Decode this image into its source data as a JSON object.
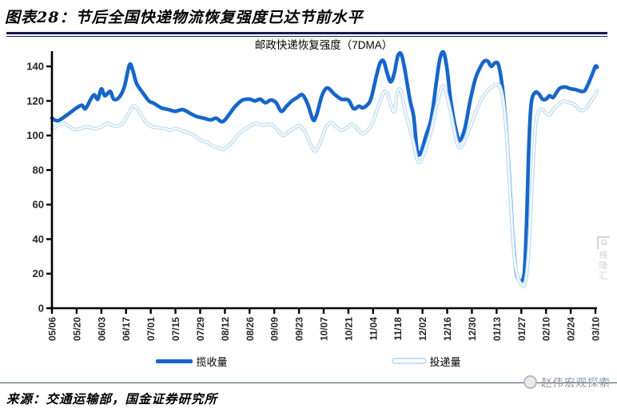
{
  "header": {
    "title": "图表28：节后全国快递物流恢复强度已达节前水平"
  },
  "chart_data": {
    "type": "line",
    "title": "邮政快递恢复强度（7DMA）",
    "xlabel": "",
    "ylabel": "",
    "ylim": [
      0,
      150
    ],
    "yticks": [
      0,
      20,
      40,
      60,
      80,
      100,
      120,
      140
    ],
    "grid": false,
    "legend_position": "bottom",
    "x_axis": {
      "tick_labels": [
        "05/06",
        "05/20",
        "06/03",
        "06/17",
        "07/01",
        "07/15",
        "07/29",
        "08/12",
        "08/26",
        "09/09",
        "09/23",
        "10/07",
        "10/21",
        "11/04",
        "11/18",
        "12/02",
        "12/16",
        "12/30",
        "01/13",
        "01/27",
        "02/10",
        "02/24",
        "03/10"
      ],
      "days_per_tick": 14,
      "note": "daily series, day 0 = 05/06, day 308 = 03/10"
    },
    "series": [
      {
        "name": "揽收量",
        "color": "#1666C9",
        "style": "thick-solid",
        "points": [
          [
            0,
            110
          ],
          [
            3,
            108.5
          ],
          [
            6,
            110
          ],
          [
            10,
            113
          ],
          [
            14,
            116
          ],
          [
            17,
            117.5
          ],
          [
            19,
            115.5
          ],
          [
            22,
            121
          ],
          [
            24,
            123.5
          ],
          [
            26,
            121
          ],
          [
            28,
            127
          ],
          [
            30,
            123
          ],
          [
            33,
            125.5
          ],
          [
            35,
            121
          ],
          [
            38,
            122
          ],
          [
            41,
            128
          ],
          [
            44,
            141
          ],
          [
            46,
            137
          ],
          [
            48,
            130
          ],
          [
            52,
            124
          ],
          [
            55,
            120
          ],
          [
            58,
            118.5
          ],
          [
            62,
            116
          ],
          [
            66,
            115
          ],
          [
            70,
            114
          ],
          [
            74,
            115
          ],
          [
            78,
            113
          ],
          [
            82,
            111
          ],
          [
            86,
            110
          ],
          [
            90,
            109
          ],
          [
            93,
            110
          ],
          [
            96,
            108
          ],
          [
            98,
            109
          ],
          [
            101,
            113
          ],
          [
            104,
            117
          ],
          [
            108,
            120.5
          ],
          [
            112,
            121
          ],
          [
            115,
            120
          ],
          [
            118,
            121
          ],
          [
            121,
            119
          ],
          [
            124,
            120.5
          ],
          [
            127,
            119
          ],
          [
            130,
            114
          ],
          [
            133,
            117
          ],
          [
            136,
            120
          ],
          [
            139,
            122
          ],
          [
            142,
            123.5
          ],
          [
            145,
            118
          ],
          [
            148,
            109
          ],
          [
            150,
            112
          ],
          [
            153,
            123
          ],
          [
            156,
            127.5
          ],
          [
            160,
            124
          ],
          [
            164,
            121
          ],
          [
            168,
            120.5
          ],
          [
            171,
            115.5
          ],
          [
            174,
            117
          ],
          [
            176,
            116
          ],
          [
            179,
            118
          ],
          [
            181,
            122
          ],
          [
            184,
            135
          ],
          [
            186,
            142
          ],
          [
            188,
            143
          ],
          [
            190,
            136
          ],
          [
            192,
            131
          ],
          [
            194,
            136
          ],
          [
            196,
            146
          ],
          [
            198,
            147
          ],
          [
            200,
            138
          ],
          [
            203,
            120
          ],
          [
            205,
            111
          ],
          [
            207,
            91
          ],
          [
            209,
            90
          ],
          [
            212,
            100
          ],
          [
            215,
            110
          ],
          [
            218,
            132
          ],
          [
            220,
            145
          ],
          [
            222,
            148
          ],
          [
            224,
            138
          ],
          [
            226,
            120
          ],
          [
            229,
            103
          ],
          [
            231,
            97
          ],
          [
            234,
            104
          ],
          [
            237,
            120
          ],
          [
            240,
            133
          ],
          [
            243,
            140
          ],
          [
            245,
            143
          ],
          [
            247,
            143
          ],
          [
            249,
            140
          ],
          [
            251,
            142
          ],
          [
            253,
            141
          ],
          [
            255,
            130
          ],
          [
            257,
            110
          ],
          [
            259,
            80
          ],
          [
            261,
            45
          ],
          [
            263,
            22
          ],
          [
            265,
            16
          ],
          [
            267,
            17
          ],
          [
            268,
            25
          ],
          [
            269,
            50
          ],
          [
            270,
            85
          ],
          [
            271,
            110
          ],
          [
            272,
            121
          ],
          [
            274,
            125
          ],
          [
            276,
            124
          ],
          [
            278,
            121
          ],
          [
            280,
            121
          ],
          [
            282,
            123
          ],
          [
            284,
            122
          ],
          [
            286,
            125
          ],
          [
            288,
            127.5
          ],
          [
            291,
            128
          ],
          [
            294,
            127
          ],
          [
            297,
            126.5
          ],
          [
            300,
            125.5
          ],
          [
            302,
            126
          ],
          [
            304,
            130
          ],
          [
            306,
            135
          ],
          [
            308,
            140
          ],
          [
            309,
            139.5
          ]
        ]
      },
      {
        "name": "投递量",
        "color": "#C3DFF5",
        "core_color": "#FFFFFF",
        "style": "light-outlined",
        "points": [
          [
            0,
            104
          ],
          [
            4,
            106
          ],
          [
            7,
            107
          ],
          [
            10,
            105
          ],
          [
            13,
            103.5
          ],
          [
            16,
            104
          ],
          [
            20,
            105
          ],
          [
            24,
            104
          ],
          [
            28,
            105
          ],
          [
            31,
            107
          ],
          [
            34,
            106
          ],
          [
            37,
            105.5
          ],
          [
            40,
            107
          ],
          [
            43,
            112
          ],
          [
            46,
            117
          ],
          [
            48,
            116
          ],
          [
            51,
            111
          ],
          [
            54,
            107
          ],
          [
            57,
            105
          ],
          [
            60,
            104.5
          ],
          [
            64,
            104
          ],
          [
            67,
            103
          ],
          [
            70,
            104
          ],
          [
            73,
            103
          ],
          [
            76,
            102
          ],
          [
            79,
            101
          ],
          [
            82,
            99
          ],
          [
            85,
            97
          ],
          [
            88,
            96
          ],
          [
            91,
            94
          ],
          [
            94,
            93
          ],
          [
            97,
            92
          ],
          [
            100,
            94
          ],
          [
            103,
            97
          ],
          [
            106,
            101
          ],
          [
            110,
            104
          ],
          [
            113,
            106
          ],
          [
            116,
            107
          ],
          [
            119,
            106
          ],
          [
            122,
            106.5
          ],
          [
            125,
            106
          ],
          [
            128,
            103
          ],
          [
            131,
            100
          ],
          [
            134,
            102
          ],
          [
            137,
            104
          ],
          [
            140,
            105.5
          ],
          [
            143,
            103
          ],
          [
            146,
            96
          ],
          [
            149,
            91
          ],
          [
            152,
            96
          ],
          [
            155,
            104
          ],
          [
            158,
            107.5
          ],
          [
            161,
            105
          ],
          [
            164,
            103
          ],
          [
            167,
            104.5
          ],
          [
            170,
            106.5
          ],
          [
            173,
            104
          ],
          [
            176,
            101
          ],
          [
            179,
            103
          ],
          [
            182,
            108
          ],
          [
            185,
            117
          ],
          [
            188,
            125
          ],
          [
            190,
            124
          ],
          [
            192,
            118
          ],
          [
            194,
            114
          ],
          [
            196,
            126
          ],
          [
            198,
            125
          ],
          [
            200,
            115
          ],
          [
            203,
            103
          ],
          [
            205,
            95
          ],
          [
            207,
            86
          ],
          [
            209,
            85
          ],
          [
            212,
            93
          ],
          [
            215,
            103
          ],
          [
            218,
            117
          ],
          [
            221,
            128
          ],
          [
            223,
            126
          ],
          [
            226,
            113
          ],
          [
            229,
            98
          ],
          [
            231,
            93
          ],
          [
            234,
            97
          ],
          [
            237,
            105
          ],
          [
            240,
            113
          ],
          [
            243,
            120
          ],
          [
            246,
            125
          ],
          [
            249,
            128
          ],
          [
            252,
            129.5
          ],
          [
            254,
            128
          ],
          [
            256,
            118
          ],
          [
            258,
            95
          ],
          [
            260,
            60
          ],
          [
            262,
            30
          ],
          [
            264,
            18
          ],
          [
            266,
            14
          ],
          [
            268,
            14
          ],
          [
            270,
            30
          ],
          [
            272,
            70
          ],
          [
            274,
            105
          ],
          [
            276,
            114
          ],
          [
            278,
            115
          ],
          [
            280,
            113
          ],
          [
            282,
            112
          ],
          [
            284,
            115
          ],
          [
            287,
            118
          ],
          [
            290,
            120
          ],
          [
            293,
            119
          ],
          [
            296,
            118
          ],
          [
            299,
            115
          ],
          [
            301,
            114.5
          ],
          [
            303,
            116
          ],
          [
            305,
            119
          ],
          [
            307,
            122
          ],
          [
            309,
            126
          ]
        ]
      }
    ]
  },
  "source": {
    "text": "来源：交通运输部，国金证券研究所"
  },
  "watermark": {
    "bottom_right": "赵伟宏观探索",
    "side_logo_letter": "G",
    "side_logo_chars": [
      "格",
      "隆",
      "汇"
    ]
  },
  "colors": {
    "header_rule": "#1A1A55",
    "separator": "#44546A",
    "axis": "#000000",
    "tick_label": "#262626"
  }
}
